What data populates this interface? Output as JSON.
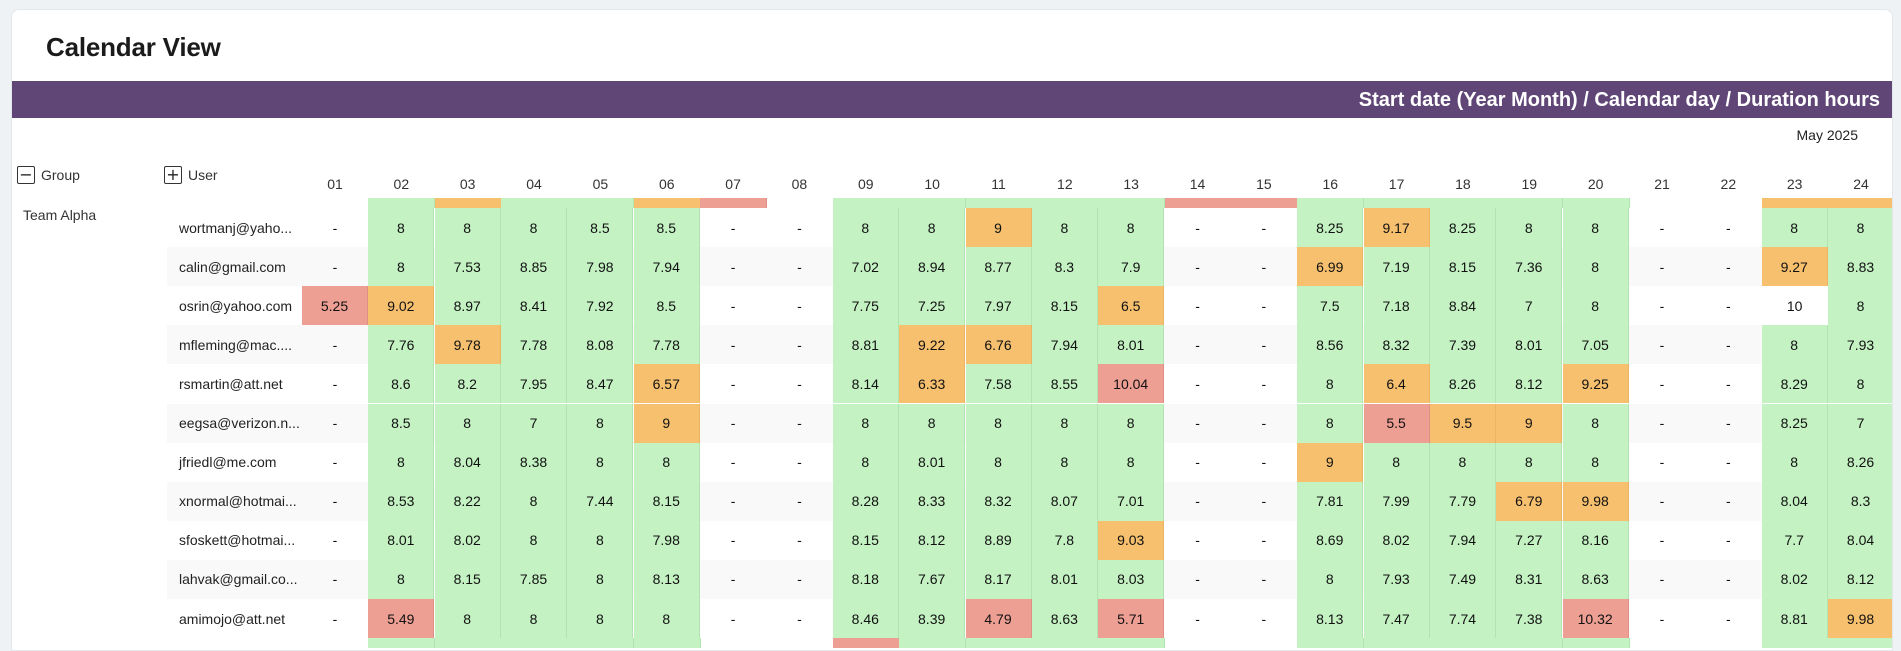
{
  "title": "Calendar View",
  "header_band": "Start date (Year Month) / Calendar day / Duration hours",
  "month_label": "May 2025",
  "group_header": {
    "label": "Group",
    "icon": "minus-box-icon"
  },
  "user_header": {
    "label": "User",
    "icon": "plus-box-icon"
  },
  "group_name": "Team Alpha",
  "colors": {
    "green": "#c4f2c3",
    "orange": "#f7c06f",
    "red": "#ee9f94",
    "band": "#604676"
  },
  "days": [
    "01",
    "02",
    "03",
    "04",
    "05",
    "06",
    "07",
    "08",
    "09",
    "10",
    "11",
    "12",
    "13",
    "14",
    "15",
    "16",
    "17",
    "18",
    "19",
    "20",
    "21",
    "22",
    "23",
    "24"
  ],
  "rows": [
    {
      "user": "wortmanj@yaho...",
      "values": [
        "-",
        "8",
        "8",
        "8",
        "8.5",
        "8.5",
        "-",
        "-",
        "8",
        "8",
        "9",
        "8",
        "8",
        "-",
        "-",
        "8.25",
        "9.17",
        "8.25",
        "8",
        "8",
        "-",
        "-",
        "8",
        "8"
      ],
      "colors": [
        "w",
        "g",
        "g",
        "g",
        "g",
        "g",
        "w",
        "w",
        "g",
        "g",
        "o",
        "g",
        "g",
        "w",
        "w",
        "g",
        "o",
        "g",
        "g",
        "g",
        "w",
        "w",
        "g",
        "g"
      ]
    },
    {
      "user": "calin@gmail.com",
      "values": [
        "-",
        "8",
        "7.53",
        "8.85",
        "7.98",
        "7.94",
        "-",
        "-",
        "7.02",
        "8.94",
        "8.77",
        "8.3",
        "7.9",
        "-",
        "-",
        "6.99",
        "7.19",
        "8.15",
        "7.36",
        "8",
        "-",
        "-",
        "9.27",
        "8.83"
      ],
      "colors": [
        "w",
        "g",
        "g",
        "g",
        "g",
        "g",
        "w",
        "w",
        "g",
        "g",
        "g",
        "g",
        "g",
        "w",
        "w",
        "o",
        "g",
        "g",
        "g",
        "g",
        "w",
        "w",
        "o",
        "g"
      ]
    },
    {
      "user": "osrin@yahoo.com",
      "values": [
        "5.25",
        "9.02",
        "8.97",
        "8.41",
        "7.92",
        "8.5",
        "-",
        "-",
        "7.75",
        "7.25",
        "7.97",
        "8.15",
        "6.5",
        "-",
        "-",
        "7.5",
        "7.18",
        "8.84",
        "7",
        "8",
        "-",
        "-",
        "10",
        "8"
      ],
      "colors": [
        "r",
        "o",
        "g",
        "g",
        "g",
        "g",
        "w",
        "w",
        "g",
        "g",
        "g",
        "g",
        "o",
        "w",
        "w",
        "g",
        "g",
        "g",
        "g",
        "g",
        "w",
        "w",
        "w",
        "g"
      ]
    },
    {
      "user": "mfleming@mac....",
      "values": [
        "-",
        "7.76",
        "9.78",
        "7.78",
        "8.08",
        "7.78",
        "-",
        "-",
        "8.81",
        "9.22",
        "6.76",
        "7.94",
        "8.01",
        "-",
        "-",
        "8.56",
        "8.32",
        "7.39",
        "8.01",
        "7.05",
        "-",
        "-",
        "8",
        "7.93"
      ],
      "colors": [
        "w",
        "g",
        "o",
        "g",
        "g",
        "g",
        "w",
        "w",
        "g",
        "o",
        "o",
        "g",
        "g",
        "w",
        "w",
        "g",
        "g",
        "g",
        "g",
        "g",
        "w",
        "w",
        "g",
        "g"
      ]
    },
    {
      "user": "rsmartin@att.net",
      "values": [
        "-",
        "8.6",
        "8.2",
        "7.95",
        "8.47",
        "6.57",
        "-",
        "-",
        "8.14",
        "6.33",
        "7.58",
        "8.55",
        "10.04",
        "-",
        "-",
        "8",
        "6.4",
        "8.26",
        "8.12",
        "9.25",
        "-",
        "-",
        "8.29",
        "8"
      ],
      "colors": [
        "w",
        "g",
        "g",
        "g",
        "g",
        "o",
        "w",
        "w",
        "g",
        "o",
        "g",
        "g",
        "r",
        "w",
        "w",
        "g",
        "o",
        "g",
        "g",
        "o",
        "w",
        "w",
        "g",
        "g"
      ]
    },
    {
      "user": "eegsa@verizon.n...",
      "values": [
        "-",
        "8.5",
        "8",
        "7",
        "8",
        "9",
        "-",
        "-",
        "8",
        "8",
        "8",
        "8",
        "8",
        "-",
        "-",
        "8",
        "5.5",
        "9.5",
        "9",
        "8",
        "-",
        "-",
        "8.25",
        "7"
      ],
      "colors": [
        "w",
        "g",
        "g",
        "g",
        "g",
        "o",
        "w",
        "w",
        "g",
        "g",
        "g",
        "g",
        "g",
        "w",
        "w",
        "g",
        "r",
        "o",
        "o",
        "g",
        "w",
        "w",
        "g",
        "g"
      ]
    },
    {
      "user": "jfriedl@me.com",
      "values": [
        "-",
        "8",
        "8.04",
        "8.38",
        "8",
        "8",
        "-",
        "-",
        "8",
        "8.01",
        "8",
        "8",
        "8",
        "-",
        "-",
        "9",
        "8",
        "8",
        "8",
        "8",
        "-",
        "-",
        "8",
        "8.26"
      ],
      "colors": [
        "w",
        "g",
        "g",
        "g",
        "g",
        "g",
        "w",
        "w",
        "g",
        "g",
        "g",
        "g",
        "g",
        "w",
        "w",
        "o",
        "g",
        "g",
        "g",
        "g",
        "w",
        "w",
        "g",
        "g"
      ]
    },
    {
      "user": "xnormal@hotmai...",
      "values": [
        "-",
        "8.53",
        "8.22",
        "8",
        "7.44",
        "8.15",
        "-",
        "-",
        "8.28",
        "8.33",
        "8.32",
        "8.07",
        "7.01",
        "-",
        "-",
        "7.81",
        "7.99",
        "7.79",
        "6.79",
        "9.98",
        "-",
        "-",
        "8.04",
        "8.3"
      ],
      "colors": [
        "w",
        "g",
        "g",
        "g",
        "g",
        "g",
        "w",
        "w",
        "g",
        "g",
        "g",
        "g",
        "g",
        "w",
        "w",
        "g",
        "g",
        "g",
        "o",
        "o",
        "w",
        "w",
        "g",
        "g"
      ]
    },
    {
      "user": "sfoskett@hotmai...",
      "values": [
        "-",
        "8.01",
        "8.02",
        "8",
        "8",
        "7.98",
        "-",
        "-",
        "8.15",
        "8.12",
        "8.89",
        "7.8",
        "9.03",
        "-",
        "-",
        "8.69",
        "8.02",
        "7.94",
        "7.27",
        "8.16",
        "-",
        "-",
        "7.7",
        "8.04"
      ],
      "colors": [
        "w",
        "g",
        "g",
        "g",
        "g",
        "g",
        "w",
        "w",
        "g",
        "g",
        "g",
        "g",
        "o",
        "w",
        "w",
        "g",
        "g",
        "g",
        "g",
        "g",
        "w",
        "w",
        "g",
        "g"
      ]
    },
    {
      "user": "lahvak@gmail.co...",
      "values": [
        "-",
        "8",
        "8.15",
        "7.85",
        "8",
        "8.13",
        "-",
        "-",
        "8.18",
        "7.67",
        "8.17",
        "8.01",
        "8.03",
        "-",
        "-",
        "8",
        "7.93",
        "7.49",
        "8.31",
        "8.63",
        "-",
        "-",
        "8.02",
        "8.12"
      ],
      "colors": [
        "w",
        "g",
        "g",
        "g",
        "g",
        "g",
        "w",
        "w",
        "g",
        "g",
        "g",
        "g",
        "g",
        "w",
        "w",
        "g",
        "g",
        "g",
        "g",
        "g",
        "w",
        "w",
        "g",
        "g"
      ]
    },
    {
      "user": "amimojo@att.net",
      "values": [
        "-",
        "5.49",
        "8",
        "8",
        "8",
        "8",
        "-",
        "-",
        "8.46",
        "8.39",
        "4.79",
        "8.63",
        "5.71",
        "-",
        "-",
        "8.13",
        "7.47",
        "7.74",
        "7.38",
        "10.32",
        "-",
        "-",
        "8.81",
        "9.98"
      ],
      "colors": [
        "w",
        "r",
        "g",
        "g",
        "g",
        "g",
        "w",
        "w",
        "g",
        "g",
        "r",
        "g",
        "r",
        "w",
        "w",
        "g",
        "g",
        "g",
        "g",
        "r",
        "w",
        "w",
        "g",
        "o"
      ]
    }
  ],
  "peek_top": [
    "w",
    "g",
    "o",
    "g",
    "g",
    "o",
    "r",
    "w",
    "g",
    "g",
    "g",
    "g",
    "g",
    "r",
    "r",
    "g",
    "g",
    "g",
    "g",
    "g",
    "w",
    "w",
    "o",
    "o"
  ],
  "peek_bottom": [
    "w",
    "g",
    "g",
    "g",
    "g",
    "g",
    "w",
    "w",
    "r",
    "g",
    "g",
    "g",
    "g",
    "w",
    "w",
    "g",
    "g",
    "g",
    "g",
    "g",
    "w",
    "w",
    "g",
    "g"
  ]
}
